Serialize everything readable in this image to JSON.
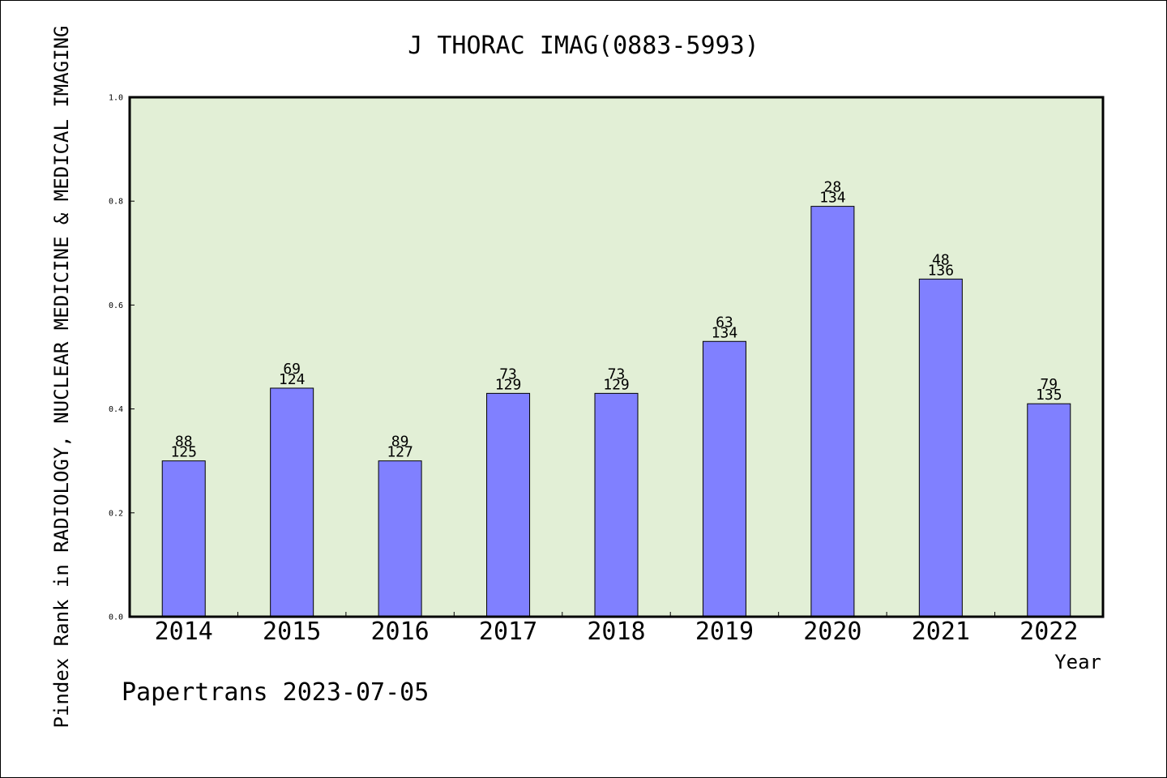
{
  "chart_data": {
    "type": "bar",
    "title": "J THORAC IMAG(0883-5993)",
    "xlabel": "Year",
    "ylabel": "Pindex Rank in RADIOLOGY, NUCLEAR MEDICINE & MEDICAL IMAGING",
    "ylim": [
      0,
      1.0
    ],
    "yticks": [
      "0.0",
      "0.2",
      "0.4",
      "0.6",
      "0.8",
      "1.0"
    ],
    "categories": [
      "2014",
      "2015",
      "2016",
      "2017",
      "2018",
      "2019",
      "2020",
      "2021",
      "2022"
    ],
    "values": [
      0.3,
      0.44,
      0.3,
      0.43,
      0.43,
      0.53,
      0.79,
      0.65,
      0.41
    ],
    "rank": [
      "88",
      "69",
      "89",
      "73",
      "73",
      "63",
      "28",
      "48",
      "79"
    ],
    "total": [
      "125",
      "124",
      "127",
      "129",
      "129",
      "134",
      "134",
      "136",
      "135"
    ],
    "grid": false,
    "colors": {
      "bar": "#8080ff",
      "plot_bg": "#e2efd6",
      "page_bg": "#ffffff"
    }
  },
  "footer": "Papertrans 2023-07-05"
}
